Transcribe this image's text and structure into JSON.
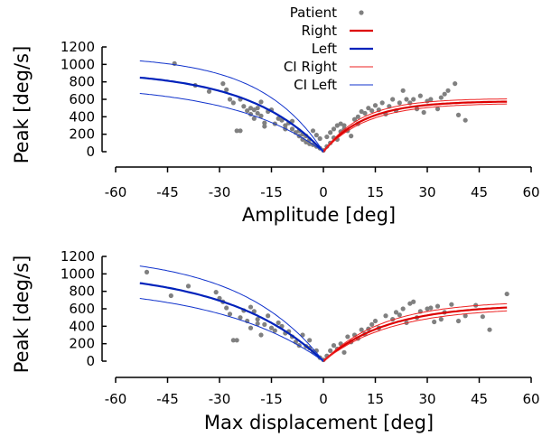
{
  "legend": [
    {
      "label": "Patient",
      "kind": "point",
      "color": "#808080"
    },
    {
      "label": "Right",
      "kind": "line-thick",
      "color": "#dd0000"
    },
    {
      "label": "Left",
      "kind": "line-thick",
      "color": "#0022bb"
    },
    {
      "label": "CI Right",
      "kind": "line-thin",
      "color": "#ee2222"
    },
    {
      "label": "CI Left",
      "kind": "line-thin",
      "color": "#1133cc"
    }
  ],
  "colors": {
    "right": "#dd0000",
    "left": "#0022bb",
    "ci_right": "#ee2222",
    "ci_left": "#1133cc",
    "points": "#808080"
  },
  "chart_data": [
    {
      "type": "scatter",
      "title": "",
      "xlabel": "Amplitude [deg]",
      "ylabel": "Peak [deg/s]",
      "xlim": [
        -60,
        60
      ],
      "ylim": [
        0,
        1200
      ],
      "xticks": [
        "-60",
        "-45",
        "-30",
        "-15",
        "0",
        "15",
        "30",
        "45",
        "60"
      ],
      "yticks": [
        "0",
        "200",
        "400",
        "600",
        "800",
        "1000",
        "1200"
      ],
      "series": [
        {
          "name": "Patient",
          "type": "scatter",
          "points": [
            [
              -43,
              1010
            ],
            [
              -37,
              760
            ],
            [
              -33,
              690
            ],
            [
              -29,
              780
            ],
            [
              -28,
              710
            ],
            [
              -27,
              600
            ],
            [
              -26,
              560
            ],
            [
              -25,
              240
            ],
            [
              -24,
              240
            ],
            [
              -24,
              600
            ],
            [
              -23,
              520
            ],
            [
              -22,
              470
            ],
            [
              -21,
              500
            ],
            [
              -21,
              430
            ],
            [
              -20,
              480
            ],
            [
              -20,
              380
            ],
            [
              -19,
              500
            ],
            [
              -19,
              440
            ],
            [
              -18,
              570
            ],
            [
              -18,
              410
            ],
            [
              -17,
              330
            ],
            [
              -17,
              290
            ],
            [
              -16,
              460
            ],
            [
              -15,
              480
            ],
            [
              -14,
              320
            ],
            [
              -13,
              380
            ],
            [
              -12,
              360
            ],
            [
              -11,
              300
            ],
            [
              -11,
              260
            ],
            [
              -10,
              330
            ],
            [
              -9,
              350
            ],
            [
              -9,
              260
            ],
            [
              -8,
              220
            ],
            [
              -7,
              240
            ],
            [
              -7,
              180
            ],
            [
              -6,
              200
            ],
            [
              -6,
              140
            ],
            [
              -5,
              180
            ],
            [
              -5,
              110
            ],
            [
              -4,
              140
            ],
            [
              -4,
              90
            ],
            [
              -3,
              240
            ],
            [
              -3,
              80
            ],
            [
              -2,
              190
            ],
            [
              -2,
              60
            ],
            [
              -1,
              150
            ],
            [
              -1,
              40
            ],
            [
              0,
              15
            ],
            [
              1,
              60
            ],
            [
              1,
              170
            ],
            [
              2,
              220
            ],
            [
              2,
              100
            ],
            [
              3,
              260
            ],
            [
              3,
              160
            ],
            [
              4,
              300
            ],
            [
              4,
              140
            ],
            [
              5,
              230
            ],
            [
              5,
              320
            ],
            [
              6,
              300
            ],
            [
              6,
              260
            ],
            [
              7,
              240
            ],
            [
              8,
              180
            ],
            [
              9,
              370
            ],
            [
              10,
              320
            ],
            [
              10,
              400
            ],
            [
              11,
              460
            ],
            [
              12,
              440
            ],
            [
              13,
              500
            ],
            [
              14,
              470
            ],
            [
              15,
              530
            ],
            [
              16,
              480
            ],
            [
              17,
              560
            ],
            [
              18,
              430
            ],
            [
              19,
              520
            ],
            [
              20,
              600
            ],
            [
              21,
              470
            ],
            [
              22,
              560
            ],
            [
              23,
              700
            ],
            [
              24,
              600
            ],
            [
              25,
              560
            ],
            [
              26,
              600
            ],
            [
              27,
              490
            ],
            [
              28,
              640
            ],
            [
              29,
              450
            ],
            [
              30,
              580
            ],
            [
              31,
              600
            ],
            [
              33,
              490
            ],
            [
              34,
              620
            ],
            [
              35,
              660
            ],
            [
              36,
              700
            ],
            [
              38,
              780
            ],
            [
              39,
              420
            ],
            [
              41,
              360
            ]
          ]
        },
        {
          "name": "Right",
          "type": "line",
          "a": 580,
          "k": 0.085,
          "range": [
            0,
            53
          ]
        },
        {
          "name": "Left",
          "type": "line",
          "a": 930,
          "k": 0.046,
          "range": [
            -53,
            0
          ]
        },
        {
          "name": "CI Right",
          "type": "line",
          "a": [
            555,
            610
          ],
          "k": [
            0.08,
            0.09
          ],
          "range": [
            0,
            53
          ]
        },
        {
          "name": "CI Left",
          "type": "line",
          "a": [
            770,
            1100
          ],
          "k": [
            0.038,
            0.055
          ],
          "range": [
            -53,
            0
          ]
        }
      ]
    },
    {
      "type": "scatter",
      "title": "",
      "xlabel": "Max displacement [deg]",
      "ylabel": "Peak [deg/s]",
      "xlim": [
        -60,
        60
      ],
      "ylim": [
        0,
        1200
      ],
      "xticks": [
        "-60",
        "-45",
        "-30",
        "-15",
        "0",
        "15",
        "30",
        "45",
        "60"
      ],
      "yticks": [
        "0",
        "200",
        "400",
        "600",
        "800",
        "1000",
        "1200"
      ],
      "series": [
        {
          "name": "Patient",
          "type": "scatter",
          "points": [
            [
              -51,
              1020
            ],
            [
              -44,
              750
            ],
            [
              -39,
              860
            ],
            [
              -31,
              790
            ],
            [
              -30,
              720
            ],
            [
              -29,
              680
            ],
            [
              -28,
              610
            ],
            [
              -27,
              540
            ],
            [
              -26,
              240
            ],
            [
              -25,
              240
            ],
            [
              -24,
              500
            ],
            [
              -23,
              580
            ],
            [
              -22,
              460
            ],
            [
              -21,
              620
            ],
            [
              -21,
              380
            ],
            [
              -20,
              570
            ],
            [
              -19,
              430
            ],
            [
              -19,
              480
            ],
            [
              -18,
              300
            ],
            [
              -17,
              420
            ],
            [
              -16,
              520
            ],
            [
              -15,
              380
            ],
            [
              -14,
              350
            ],
            [
              -13,
              440
            ],
            [
              -12,
              400
            ],
            [
              -11,
              320
            ],
            [
              -10,
              340
            ],
            [
              -9,
              280
            ],
            [
              -8,
              220
            ],
            [
              -7,
              180
            ],
            [
              -6,
              300
            ],
            [
              -5,
              170
            ],
            [
              -4,
              150
            ],
            [
              -4,
              240
            ],
            [
              -3,
              110
            ],
            [
              -2,
              120
            ],
            [
              -1,
              40
            ],
            [
              0,
              15
            ],
            [
              1,
              60
            ],
            [
              2,
              120
            ],
            [
              3,
              180
            ],
            [
              4,
              140
            ],
            [
              5,
              200
            ],
            [
              6,
              100
            ],
            [
              7,
              280
            ],
            [
              8,
              220
            ],
            [
              9,
              300
            ],
            [
              10,
              260
            ],
            [
              11,
              360
            ],
            [
              12,
              310
            ],
            [
              13,
              370
            ],
            [
              14,
              420
            ],
            [
              15,
              460
            ],
            [
              16,
              380
            ],
            [
              18,
              520
            ],
            [
              20,
              480
            ],
            [
              21,
              560
            ],
            [
              22,
              530
            ],
            [
              23,
              600
            ],
            [
              24,
              440
            ],
            [
              25,
              660
            ],
            [
              26,
              680
            ],
            [
              27,
              500
            ],
            [
              28,
              570
            ],
            [
              30,
              600
            ],
            [
              31,
              610
            ],
            [
              32,
              450
            ],
            [
              33,
              630
            ],
            [
              34,
              480
            ],
            [
              35,
              560
            ],
            [
              37,
              650
            ],
            [
              39,
              460
            ],
            [
              41,
              520
            ],
            [
              44,
              640
            ],
            [
              46,
              510
            ],
            [
              48,
              360
            ],
            [
              53,
              770
            ]
          ]
        },
        {
          "name": "Right",
          "type": "line",
          "a": 650,
          "k": 0.055,
          "range": [
            0,
            53
          ]
        },
        {
          "name": "Left",
          "type": "line",
          "a": 1050,
          "k": 0.036,
          "range": [
            -53,
            0
          ]
        },
        {
          "name": "CI Right",
          "type": "line",
          "a": [
            615,
            690
          ],
          "k": [
            0.052,
            0.058
          ],
          "range": [
            0,
            53
          ]
        },
        {
          "name": "CI Left",
          "type": "line",
          "a": [
            880,
            1230
          ],
          "k": [
            0.032,
            0.041
          ],
          "range": [
            -53,
            0
          ]
        }
      ]
    }
  ]
}
